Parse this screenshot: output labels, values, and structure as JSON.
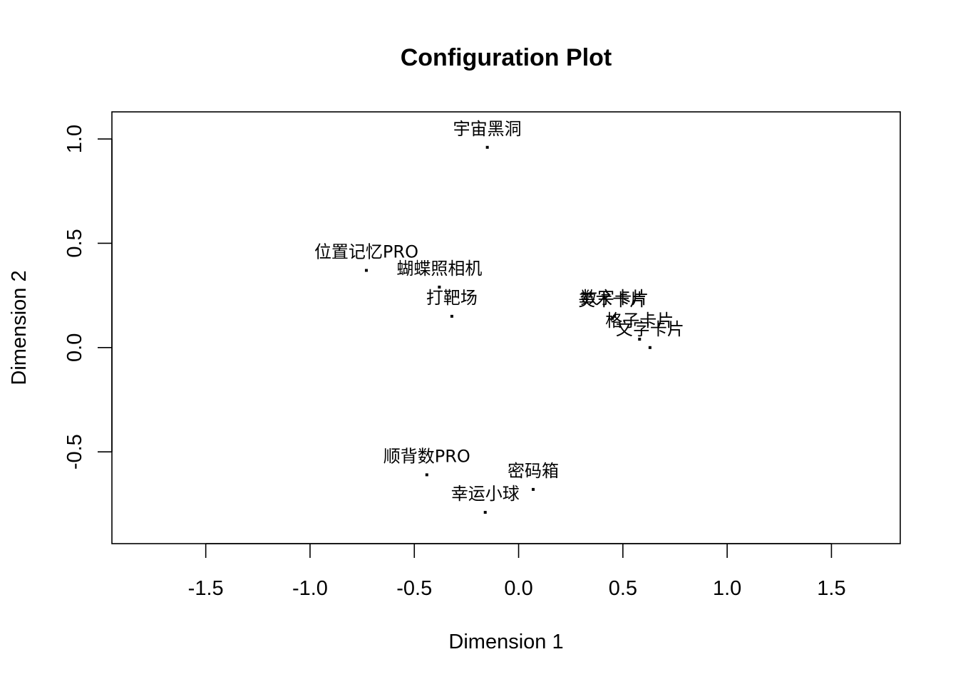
{
  "chart_data": {
    "type": "scatter",
    "title": "Configuration Plot",
    "xlabel": "Dimension 1",
    "ylabel": "Dimension 2",
    "xlim": [
      -1.95,
      1.83
    ],
    "ylim": [
      -0.94,
      1.13
    ],
    "x_ticks": [
      -1.5,
      -1.0,
      -0.5,
      0.0,
      0.5,
      1.0,
      1.5
    ],
    "x_tick_labels": [
      "-1.5",
      "-1.0",
      "-0.5",
      "0.0",
      "0.5",
      "1.0",
      "1.5"
    ],
    "y_ticks": [
      -0.5,
      0.0,
      0.5,
      1.0
    ],
    "y_tick_labels": [
      "-0.5",
      "0.0",
      "0.5",
      "1.0"
    ],
    "grid": false,
    "legend": "none",
    "points": [
      {
        "label": "宇宙黑洞",
        "x": -0.15,
        "y": 0.96
      },
      {
        "label": "位置记忆PRO",
        "x": -0.73,
        "y": 0.37
      },
      {
        "label": "蝴蝶照相机",
        "x": -0.38,
        "y": 0.29
      },
      {
        "label": "打靶场",
        "x": -0.32,
        "y": 0.15
      },
      {
        "label": "数字卡片",
        "x": 0.46,
        "y": 0.15
      },
      {
        "label": "美术卡片",
        "x": 0.45,
        "y": 0.14
      },
      {
        "label": "格子卡片",
        "x": 0.58,
        "y": 0.04
      },
      {
        "label": "文字卡片",
        "x": 0.63,
        "y": 0.0
      },
      {
        "label": "顺背数PRO",
        "x": -0.44,
        "y": -0.61
      },
      {
        "label": "密码箱",
        "x": 0.07,
        "y": -0.68
      },
      {
        "label": "幸运小球",
        "x": -0.16,
        "y": -0.79
      }
    ]
  }
}
